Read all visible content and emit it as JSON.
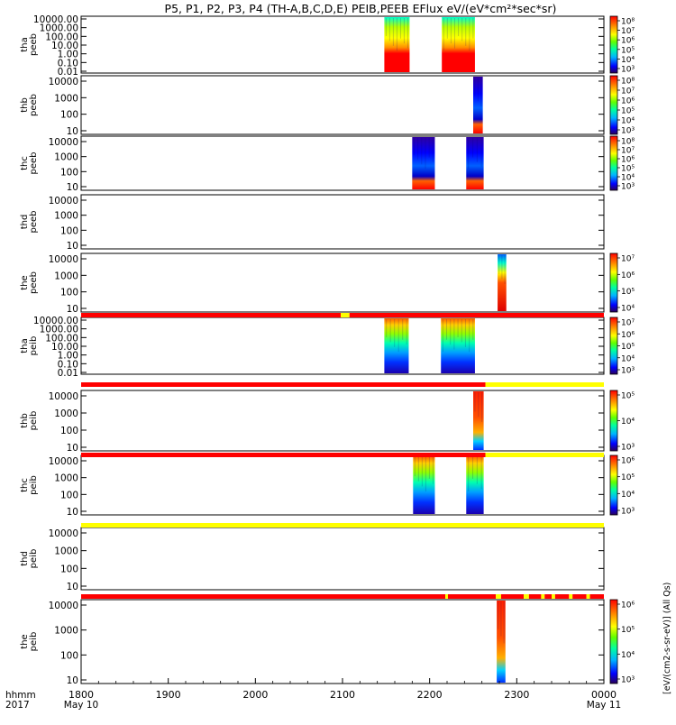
{
  "title": "P5, P1, P2, P3, P4 (TH-A,B,C,D,E) PEIB,PEEB EFlux eV/(eV*cm²*sec*sr)",
  "time_axis": {
    "corner_top": "hhmm",
    "corner_bottom": "2017",
    "ticks": [
      {
        "t": 0,
        "label": "1800",
        "sub": "May 10"
      },
      {
        "t": 100,
        "label": "1900",
        "sub": ""
      },
      {
        "t": 200,
        "label": "2000",
        "sub": ""
      },
      {
        "t": 300,
        "label": "2100",
        "sub": ""
      },
      {
        "t": 400,
        "label": "2200",
        "sub": ""
      },
      {
        "t": 500,
        "label": "2300",
        "sub": ""
      },
      {
        "t": 600,
        "label": "0000",
        "sub": "May 11"
      }
    ]
  },
  "colorbar_label": "[eV/(cm2-s-sr-eV)] (All Qs)",
  "chart_data": [
    {
      "type": "heatmap",
      "panel": "tha-peeb",
      "ylabel": [
        "tha",
        "peeb"
      ],
      "yticks": [
        "10000.00",
        "1000.00",
        "100.00",
        "10.00",
        "1.00",
        "0.10",
        "0.01"
      ],
      "blocks": [
        {
          "t0": 348,
          "t1": 377,
          "style": "electron-ab"
        },
        {
          "t0": 414,
          "t1": 452,
          "style": "electron-ab"
        }
      ],
      "cbar_ticks": [
        "10⁸",
        "10⁷",
        "10⁶",
        "10⁵",
        "10⁴",
        "10³"
      ]
    },
    {
      "type": "heatmap",
      "panel": "thb-peeb",
      "ylabel": [
        "thb",
        "peeb"
      ],
      "yticks": [
        "10000",
        "1000",
        "100",
        "10"
      ],
      "blocks": [
        {
          "t0": 450,
          "t1": 461,
          "style": "electron-blue"
        }
      ],
      "cbar_ticks": [
        "10⁸",
        "10⁷",
        "10⁶",
        "10⁵",
        "10⁴",
        "10³"
      ]
    },
    {
      "type": "heatmap",
      "panel": "thc-peeb",
      "ylabel": [
        "thc",
        "peeb"
      ],
      "yticks": [
        "10000",
        "1000",
        "100",
        "10"
      ],
      "blocks": [
        {
          "t0": 380,
          "t1": 406,
          "style": "electron-blue"
        },
        {
          "t0": 442,
          "t1": 462,
          "style": "electron-blue"
        }
      ],
      "cbar_ticks": [
        "10⁸",
        "10⁷",
        "10⁶",
        "10⁵",
        "10⁴",
        "10³"
      ]
    },
    {
      "type": "heatmap",
      "panel": "thd-peeb",
      "ylabel": [
        "thd",
        "peeb"
      ],
      "yticks": [
        "10000",
        "1000",
        "100",
        "10"
      ],
      "blocks": [],
      "cbar_ticks": []
    },
    {
      "type": "heatmap",
      "panel": "the-peeb",
      "ylabel": [
        "the",
        "peeb"
      ],
      "yticks": [
        "10000",
        "1000",
        "100",
        "10"
      ],
      "blocks": [
        {
          "t0": 478,
          "t1": 488,
          "style": "electron-e"
        }
      ],
      "cbar_ticks": [
        "10⁷",
        "10⁶",
        "10⁵",
        "10⁴"
      ]
    },
    {
      "type": "heatmap",
      "panel": "tha-peib",
      "ylabel": [
        "tha",
        "peib"
      ],
      "yticks": [
        "10000.00",
        "1000.00",
        "100.00",
        "10.00",
        "1.00",
        "0.10",
        "0.01"
      ],
      "blocks": [
        {
          "t0": 348,
          "t1": 376,
          "style": "ion"
        },
        {
          "t0": 413,
          "t1": 452,
          "style": "ion"
        }
      ],
      "cbar_ticks": [
        "10⁷",
        "10⁶",
        "10⁵",
        "10⁴",
        "10³"
      ]
    },
    {
      "type": "heatmap",
      "panel": "thb-peib",
      "ylabel": [
        "thb",
        "peib"
      ],
      "yticks": [
        "10000",
        "1000",
        "100",
        "10"
      ],
      "blocks": [
        {
          "t0": 450,
          "t1": 462,
          "style": "ion-red"
        }
      ],
      "cbar_ticks": [
        "10⁵",
        "10⁴",
        "10³"
      ]
    },
    {
      "type": "heatmap",
      "panel": "thc-peib",
      "ylabel": [
        "thc",
        "peib"
      ],
      "yticks": [
        "10000",
        "1000",
        "100",
        "10"
      ],
      "blocks": [
        {
          "t0": 381,
          "t1": 406,
          "style": "ion"
        },
        {
          "t0": 442,
          "t1": 462,
          "style": "ion"
        }
      ],
      "cbar_ticks": [
        "10⁶",
        "10⁵",
        "10⁴",
        "10³"
      ]
    },
    {
      "type": "heatmap",
      "panel": "thd-peib",
      "ylabel": [
        "thd",
        "peib"
      ],
      "yticks": [
        "10000",
        "1000",
        "100",
        "10"
      ],
      "blocks": [],
      "cbar_ticks": []
    },
    {
      "type": "heatmap",
      "panel": "the-peib",
      "ylabel": [
        "the",
        "peib"
      ],
      "yticks": [
        "10000",
        "1000",
        "100",
        "10"
      ],
      "blocks": [
        {
          "t0": 477,
          "t1": 487,
          "style": "ion-red"
        }
      ],
      "cbar_ticks": [
        "10⁶",
        "10⁵",
        "10⁴",
        "10³"
      ]
    }
  ],
  "mode_bars": [
    {
      "after_panel": 4,
      "segments": [
        {
          "t0": 0,
          "t1": 298,
          "color": "#ff0000"
        },
        {
          "t0": 298,
          "t1": 308,
          "color": "#ffff00"
        },
        {
          "t0": 308,
          "t1": 600,
          "color": "#ff0000"
        }
      ]
    },
    {
      "after_panel": 5,
      "segments": [
        {
          "t0": 0,
          "t1": 464,
          "color": "#ff0000"
        },
        {
          "t0": 464,
          "t1": 600,
          "color": "#ffff00"
        }
      ]
    },
    {
      "after_panel": 6,
      "segments": [
        {
          "t0": 0,
          "t1": 464,
          "color": "#ff0000"
        },
        {
          "t0": 464,
          "t1": 600,
          "color": "#ffff00"
        }
      ]
    },
    {
      "after_panel": 7,
      "segments": [
        {
          "t0": 0,
          "t1": 600,
          "color": "#ffff00"
        }
      ]
    },
    {
      "after_panel": 8,
      "segments": [
        {
          "t0": 0,
          "t1": 418,
          "color": "#ff0000"
        },
        {
          "t0": 418,
          "t1": 421,
          "color": "#ffff00"
        },
        {
          "t0": 421,
          "t1": 476,
          "color": "#ff0000"
        },
        {
          "t0": 476,
          "t1": 482,
          "color": "#ffff00"
        },
        {
          "t0": 482,
          "t1": 508,
          "color": "#ff0000"
        },
        {
          "t0": 508,
          "t1": 514,
          "color": "#ffff00"
        },
        {
          "t0": 514,
          "t1": 528,
          "color": "#ff0000"
        },
        {
          "t0": 528,
          "t1": 532,
          "color": "#ffff00"
        },
        {
          "t0": 532,
          "t1": 540,
          "color": "#ff0000"
        },
        {
          "t0": 540,
          "t1": 544,
          "color": "#ffff00"
        },
        {
          "t0": 544,
          "t1": 560,
          "color": "#ff0000"
        },
        {
          "t0": 560,
          "t1": 564,
          "color": "#ffff00"
        },
        {
          "t0": 564,
          "t1": 580,
          "color": "#ff0000"
        },
        {
          "t0": 580,
          "t1": 584,
          "color": "#ffff00"
        },
        {
          "t0": 584,
          "t1": 600,
          "color": "#ff0000"
        }
      ]
    }
  ]
}
